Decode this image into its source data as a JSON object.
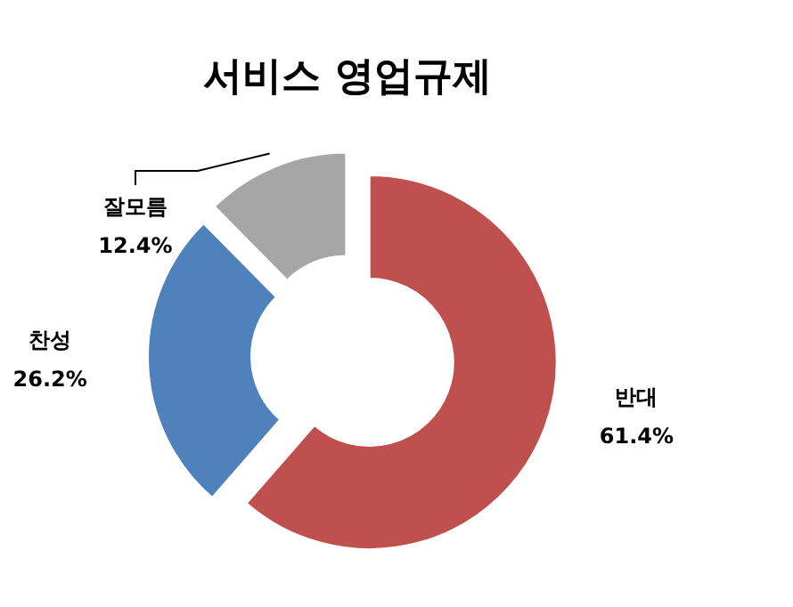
{
  "chart_data": {
    "type": "donut",
    "title": "서비스 영업규제",
    "categories": [
      "반대",
      "찬성",
      "잘모름"
    ],
    "values": [
      61.4,
      26.2,
      12.4
    ],
    "value_labels": [
      "61.4%",
      "26.2%",
      "12.4%"
    ],
    "colors": [
      "#c0504d",
      "#4f81bd",
      "#a6a6a6"
    ]
  }
}
